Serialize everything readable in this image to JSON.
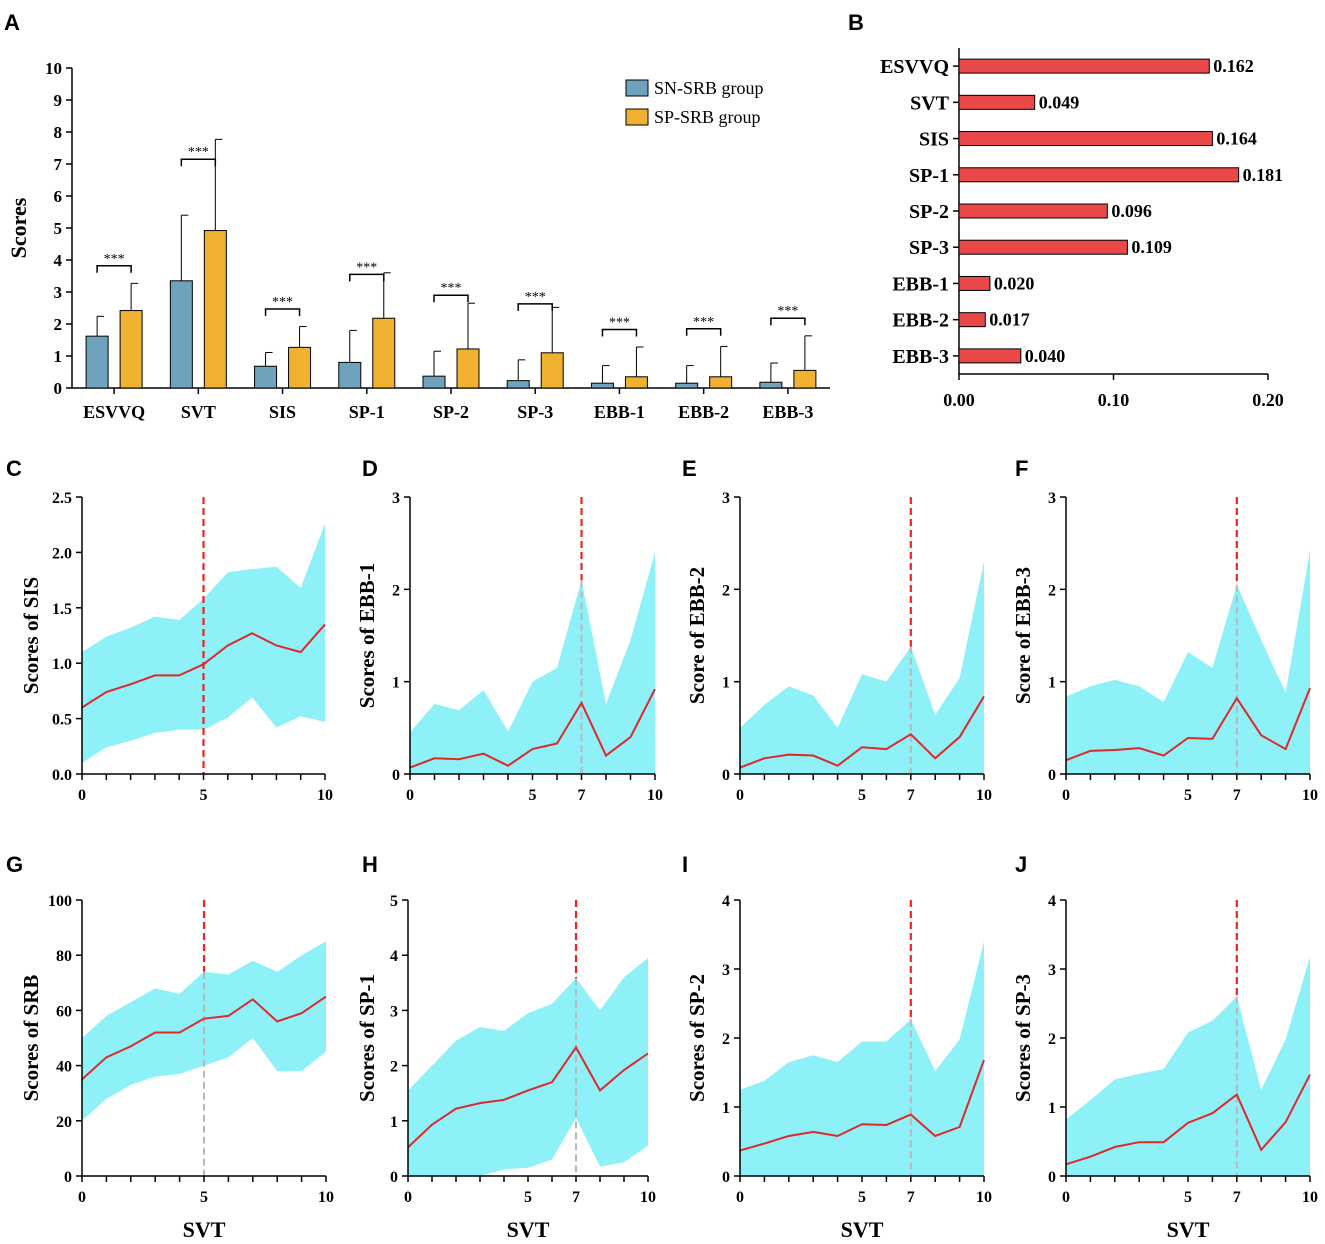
{
  "chart_data": [
    {
      "panel": "A",
      "type": "bar",
      "ylabel": "Scores",
      "ylim": [
        0,
        10
      ],
      "yticks": [
        "0",
        "1",
        "2",
        "3",
        "4",
        "5",
        "6",
        "7",
        "8",
        "9",
        "10"
      ],
      "categories": [
        "ESVVQ",
        "SVT",
        "SIS",
        "SP-1",
        "SP-2",
        "SP-3",
        "EBB-1",
        "EBB-2",
        "EBB-3"
      ],
      "series": [
        {
          "name": "SN-SRB group",
          "color": "#6fa3bd",
          "values": [
            1.62,
            3.35,
            0.68,
            0.8,
            0.37,
            0.23,
            0.15,
            0.15,
            0.18
          ],
          "errors": [
            0.62,
            2.05,
            0.43,
            1.0,
            0.78,
            0.65,
            0.55,
            0.55,
            0.6
          ]
        },
        {
          "name": "SP-SRB group",
          "color": "#f0b030",
          "values": [
            2.42,
            4.92,
            1.27,
            2.18,
            1.22,
            1.1,
            0.35,
            0.35,
            0.55
          ],
          "errors": [
            0.85,
            2.85,
            0.65,
            1.42,
            1.43,
            1.42,
            0.93,
            0.95,
            1.08
          ]
        }
      ],
      "significance": [
        "***",
        "***",
        "***",
        "***",
        "***",
        "***",
        "***",
        "***",
        "***"
      ],
      "legend": "top-right"
    },
    {
      "panel": "B",
      "type": "bar",
      "orientation": "horizontal",
      "color": "#e84848",
      "categories": [
        "ESVVQ",
        "SVT",
        "SIS",
        "SP-1",
        "SP-2",
        "SP-3",
        "EBB-1",
        "EBB-2",
        "EBB-3"
      ],
      "values": [
        0.162,
        0.049,
        0.164,
        0.181,
        0.096,
        0.109,
        0.02,
        0.017,
        0.04
      ],
      "value_labels": [
        "0.162",
        "0.049",
        "0.164",
        "0.181",
        "0.096",
        "0.109",
        "0.020",
        "0.017",
        "0.040"
      ],
      "xlim": [
        0,
        0.2
      ],
      "xticks": [
        "0.00",
        "0.10",
        "0.20"
      ]
    },
    {
      "panel": "C",
      "type": "line",
      "xlabel": "",
      "ylabel": "Scores of SIS",
      "x": [
        0,
        1,
        2,
        3,
        4,
        5,
        6,
        7,
        8,
        9,
        10
      ],
      "mean": [
        0.6,
        0.74,
        0.81,
        0.89,
        0.89,
        0.99,
        1.16,
        1.27,
        1.16,
        1.1,
        1.35
      ],
      "upper": [
        1.1,
        1.24,
        1.32,
        1.42,
        1.39,
        1.58,
        1.82,
        1.85,
        1.87,
        1.68,
        2.26
      ],
      "lower": [
        0.1,
        0.24,
        0.3,
        0.37,
        0.4,
        0.4,
        0.51,
        0.69,
        0.42,
        0.52,
        0.47
      ],
      "cutoff": 5,
      "cutoff_gray": false,
      "ylim": [
        0,
        2.5
      ],
      "yticks": [
        "0.0",
        "0.5",
        "1.0",
        "1.5",
        "2.0",
        "2.5"
      ],
      "xticks": [
        "0",
        "5",
        "10"
      ]
    },
    {
      "panel": "D",
      "type": "line",
      "xlabel": "",
      "ylabel": "Scores of EBB-1",
      "x": [
        0,
        1,
        2,
        3,
        4,
        5,
        6,
        7,
        8,
        9,
        10
      ],
      "mean": [
        0.07,
        0.17,
        0.16,
        0.22,
        0.09,
        0.27,
        0.33,
        0.77,
        0.2,
        0.4,
        0.92
      ],
      "upper": [
        0.45,
        0.76,
        0.69,
        0.91,
        0.46,
        1.0,
        1.15,
        2.1,
        0.76,
        1.45,
        2.4
      ],
      "lower": [
        0,
        0,
        0,
        0,
        0,
        0,
        0,
        0,
        0,
        0,
        0
      ],
      "cutoff": 7,
      "cutoff_gray": true,
      "ylim": [
        0,
        3
      ],
      "yticks": [
        "0",
        "1",
        "2",
        "3"
      ],
      "xticks": [
        "0",
        "5",
        "7",
        "10"
      ]
    },
    {
      "panel": "E",
      "type": "line",
      "xlabel": "",
      "ylabel": "Score of EBB-2",
      "x": [
        0,
        1,
        2,
        3,
        4,
        5,
        6,
        7,
        8,
        9,
        10
      ],
      "mean": [
        0.07,
        0.17,
        0.21,
        0.2,
        0.09,
        0.29,
        0.27,
        0.43,
        0.17,
        0.4,
        0.84
      ],
      "upper": [
        0.5,
        0.75,
        0.95,
        0.85,
        0.5,
        1.08,
        1.0,
        1.38,
        0.64,
        1.04,
        2.3
      ],
      "lower": [
        0,
        0,
        0,
        0,
        0,
        0,
        0,
        0,
        0,
        0,
        0
      ],
      "cutoff": 7,
      "cutoff_gray": true,
      "ylim": [
        0,
        3
      ],
      "yticks": [
        "0",
        "1",
        "2",
        "3"
      ],
      "xticks": [
        "0",
        "5",
        "7",
        "10"
      ]
    },
    {
      "panel": "F",
      "type": "line",
      "xlabel": "",
      "ylabel": "Score of EBB-3",
      "x": [
        0,
        1,
        2,
        3,
        4,
        5,
        6,
        7,
        8,
        9,
        10
      ],
      "mean": [
        0.15,
        0.25,
        0.26,
        0.28,
        0.2,
        0.39,
        0.38,
        0.82,
        0.42,
        0.27,
        0.93
      ],
      "upper": [
        0.84,
        0.95,
        1.02,
        0.95,
        0.78,
        1.32,
        1.15,
        2.05,
        1.45,
        0.88,
        2.42
      ],
      "lower": [
        0,
        0,
        0,
        0,
        0,
        0,
        0,
        0,
        0,
        0,
        0
      ],
      "cutoff": 7,
      "cutoff_gray": true,
      "ylim": [
        0,
        3
      ],
      "yticks": [
        "0",
        "1",
        "2",
        "3"
      ],
      "xticks": [
        "0",
        "5",
        "7",
        "10"
      ]
    },
    {
      "panel": "G",
      "type": "line",
      "xlabel": "SVT",
      "ylabel": "Scores of SRB",
      "x": [
        0,
        1,
        2,
        3,
        4,
        5,
        6,
        7,
        8,
        9,
        10
      ],
      "mean": [
        35,
        43,
        47,
        52,
        52,
        57,
        58,
        64,
        56,
        59,
        65
      ],
      "upper": [
        50,
        58,
        63,
        68,
        66,
        74,
        73,
        78,
        74,
        80,
        85
      ],
      "lower": [
        20,
        28,
        33,
        36,
        37,
        40,
        43,
        50,
        38,
        38,
        45
      ],
      "cutoff": 5,
      "cutoff_gray": true,
      "ylim": [
        0,
        100
      ],
      "yticks": [
        "0",
        "20",
        "40",
        "60",
        "80",
        "100"
      ],
      "xticks": [
        "0",
        "5",
        "10"
      ]
    },
    {
      "panel": "H",
      "type": "line",
      "xlabel": "SVT",
      "ylabel": "Scores of SP-1",
      "x": [
        0,
        1,
        2,
        3,
        4,
        5,
        6,
        7,
        8,
        9,
        10
      ],
      "mean": [
        0.52,
        0.93,
        1.22,
        1.32,
        1.38,
        1.55,
        1.7,
        2.33,
        1.55,
        1.92,
        2.22
      ],
      "upper": [
        1.55,
        2.0,
        2.45,
        2.7,
        2.63,
        2.95,
        3.12,
        3.58,
        3.0,
        3.6,
        3.95
      ],
      "lower": [
        0,
        0,
        0,
        0,
        0.12,
        0.15,
        0.3,
        1.05,
        0.17,
        0.25,
        0.55
      ],
      "cutoff": 7,
      "cutoff_gray": true,
      "ylim": [
        0,
        5
      ],
      "yticks": [
        "0",
        "1",
        "2",
        "3",
        "4",
        "5"
      ],
      "xticks": [
        "0",
        "5",
        "7",
        "10"
      ]
    },
    {
      "panel": "I",
      "type": "line",
      "xlabel": "SVT",
      "ylabel": "Scores of SP-2",
      "x": [
        0,
        1,
        2,
        3,
        4,
        5,
        6,
        7,
        8,
        9,
        10
      ],
      "mean": [
        0.37,
        0.47,
        0.58,
        0.64,
        0.58,
        0.75,
        0.74,
        0.89,
        0.58,
        0.71,
        1.68
      ],
      "upper": [
        1.25,
        1.38,
        1.65,
        1.75,
        1.65,
        1.95,
        1.95,
        2.27,
        1.52,
        1.98,
        3.4
      ],
      "lower": [
        0,
        0,
        0,
        0,
        0,
        0,
        0,
        0,
        0,
        0,
        0
      ],
      "cutoff": 7,
      "cutoff_gray": true,
      "ylim": [
        0,
        4
      ],
      "yticks": [
        "0",
        "1",
        "2",
        "3",
        "4"
      ],
      "xticks": [
        "0",
        "5",
        "7",
        "10"
      ]
    },
    {
      "panel": "J",
      "type": "line",
      "xlabel": "SVT",
      "ylabel": "Scores of SP-3",
      "x": [
        0,
        1,
        2,
        3,
        4,
        5,
        6,
        7,
        8,
        9,
        10
      ],
      "mean": [
        0.17,
        0.28,
        0.42,
        0.49,
        0.49,
        0.77,
        0.91,
        1.18,
        0.38,
        0.78,
        1.47
      ],
      "upper": [
        0.82,
        1.1,
        1.4,
        1.48,
        1.55,
        2.08,
        2.25,
        2.6,
        1.25,
        1.98,
        3.18
      ],
      "lower": [
        0,
        0,
        0,
        0,
        0,
        0,
        0,
        0,
        0,
        0,
        0
      ],
      "cutoff": 7,
      "cutoff_gray": true,
      "ylim": [
        0,
        4
      ],
      "yticks": [
        "0",
        "1",
        "2",
        "3",
        "4"
      ],
      "xticks": [
        "0",
        "5",
        "7",
        "10"
      ]
    }
  ],
  "colors": {
    "band": "#8ef1f8",
    "mean_line": "#dc2a2a",
    "cutoff_red": "#ee2222",
    "cutoff_gray": "#b8b8b8",
    "axis": "#000000"
  }
}
